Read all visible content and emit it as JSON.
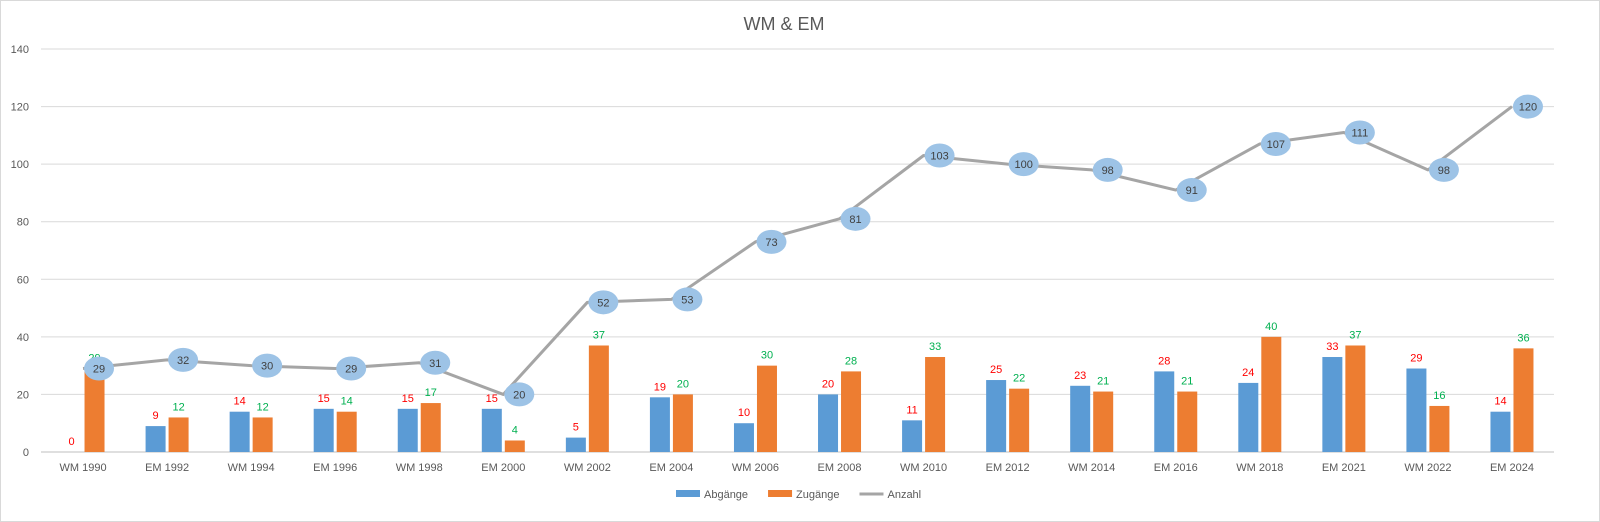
{
  "chart_data": {
    "type": "bar",
    "title": "WM & EM",
    "categories": [
      "WM 1990",
      "EM 1992",
      "WM 1994",
      "EM 1996",
      "WM 1998",
      "EM 2000",
      "WM 2002",
      "EM 2004",
      "WM 2006",
      "EM 2008",
      "WM 2010",
      "EM 2012",
      "WM 2014",
      "EM 2016",
      "WM 2018",
      "EM 2021",
      "WM 2022",
      "EM 2024"
    ],
    "ylim": [
      0,
      140
    ],
    "yticks": [
      0,
      20,
      40,
      60,
      80,
      100,
      120,
      140
    ],
    "grid": true,
    "legend_position": "bottom",
    "series": [
      {
        "name": "Abgänge",
        "type": "bar",
        "color": "#5b9bd5",
        "label_color": "#ff0000",
        "values": [
          0,
          9,
          14,
          15,
          15,
          15,
          5,
          19,
          10,
          20,
          11,
          25,
          23,
          28,
          24,
          33,
          29,
          14
        ]
      },
      {
        "name": "Zugänge",
        "type": "bar",
        "color": "#ed7d31",
        "label_color": "#00b050",
        "values": [
          29,
          12,
          12,
          14,
          17,
          4,
          37,
          20,
          30,
          28,
          33,
          22,
          21,
          21,
          40,
          37,
          16,
          36
        ]
      },
      {
        "name": "Anzahl",
        "type": "line",
        "color": "#a5a5a5",
        "bubble_color": "#9dc3e6",
        "values": [
          29,
          32,
          30,
          29,
          31,
          20,
          52,
          53,
          73,
          81,
          103,
          100,
          98,
          91,
          107,
          111,
          98,
          120
        ]
      }
    ]
  }
}
